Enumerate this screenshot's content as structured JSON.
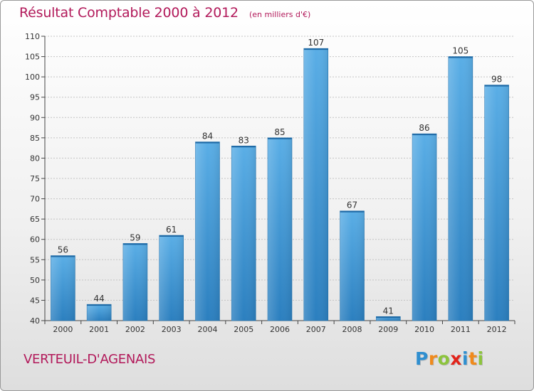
{
  "chart_data": {
    "type": "bar",
    "title": "Résultat Comptable 2000 à 2012",
    "subtitle": "(en milliers d'€)",
    "categories": [
      "2000",
      "2001",
      "2002",
      "2003",
      "2004",
      "2005",
      "2006",
      "2007",
      "2008",
      "2009",
      "2010",
      "2011",
      "2012"
    ],
    "values": [
      56,
      44,
      59,
      61,
      84,
      83,
      85,
      107,
      67,
      41,
      86,
      105,
      98
    ],
    "ylim": [
      40,
      110
    ],
    "yticks": [
      40,
      45,
      50,
      55,
      60,
      65,
      70,
      75,
      80,
      85,
      90,
      95,
      100,
      105,
      110
    ],
    "grid": true,
    "colors": {
      "bar_light": "#5aaee6",
      "bar_dark": "#2b7fbf",
      "title": "#b2195a"
    }
  },
  "footer": {
    "place": "VERTEUIL-D'AGENAIS",
    "logo_letters": [
      {
        "ch": "P",
        "color": "#2f8fd0"
      },
      {
        "ch": "r",
        "color": "#f08a1c"
      },
      {
        "ch": "o",
        "color": "#8cc43c"
      },
      {
        "ch": "x",
        "color": "#e2231a"
      },
      {
        "ch": "i",
        "color": "#2f8fd0"
      },
      {
        "ch": "t",
        "color": "#f08a1c"
      },
      {
        "ch": "i",
        "color": "#8cc43c"
      }
    ]
  }
}
